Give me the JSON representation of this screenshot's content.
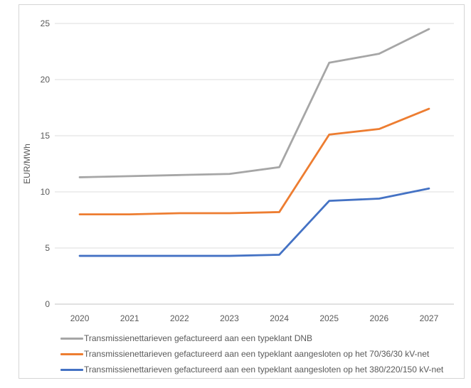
{
  "chart_data": {
    "type": "line",
    "title": "",
    "xlabel": "",
    "ylabel": "EUR/MWh",
    "categories": [
      "2020",
      "2021",
      "2022",
      "2023",
      "2024",
      "2025",
      "2026",
      "2027"
    ],
    "ylim": [
      0,
      25
    ],
    "yticks": [
      0,
      5,
      10,
      15,
      20,
      25
    ],
    "grid": true,
    "legend_position": "bottom-left",
    "series": [
      {
        "name": "Transmissienettarieven gefactureerd aan een typeklant DNB",
        "color": "#A6A6A6",
        "values": [
          11.3,
          11.4,
          11.5,
          11.6,
          12.2,
          21.5,
          22.3,
          24.5
        ]
      },
      {
        "name": "Transmissienettarieven gefactureerd aan een typeklant aangesloten op het 70/36/30 kV-net",
        "color": "#ED7D31",
        "values": [
          8.0,
          8.0,
          8.1,
          8.1,
          8.2,
          15.1,
          15.6,
          17.4
        ]
      },
      {
        "name": "Transmissienettarieven gefactureerd aan een typeklant aangesloten op het 380/220/150 kV-net",
        "color": "#4472C4",
        "values": [
          4.3,
          4.3,
          4.3,
          4.3,
          4.4,
          9.2,
          9.4,
          10.3
        ]
      }
    ]
  },
  "colors": {
    "text": "#595959",
    "gridline": "#DCDCDC",
    "axis_line": "#C3C3C3",
    "frame_border": "#D5D5D5",
    "background": "#FFFFFF"
  }
}
